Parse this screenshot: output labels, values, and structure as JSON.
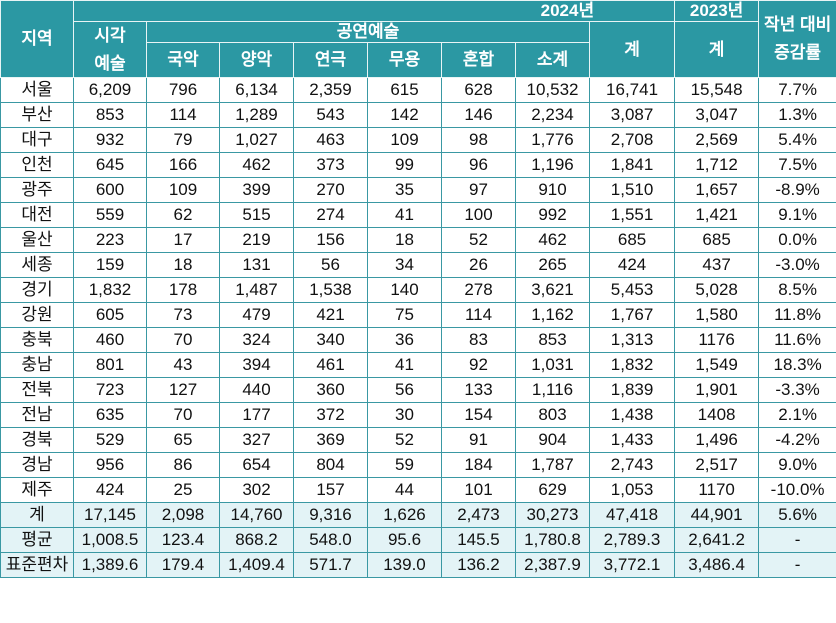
{
  "header": {
    "region": "지역",
    "year2024": "2024년",
    "year2023": "2023년",
    "visual_arts_line1": "시각",
    "visual_arts_line2": "예술",
    "performing_arts": "공연예술",
    "gukak": "국악",
    "yangak": "양악",
    "theater": "연극",
    "dance": "무용",
    "mixed": "혼합",
    "subtotal": "소계",
    "total2024": "계",
    "total2023": "계",
    "change_line1": "작년 대비",
    "change_line2": "증감률"
  },
  "rows": [
    {
      "region": "서울",
      "visual": "6,209",
      "gukak": "796",
      "yangak": "6,134",
      "theater": "2,359",
      "dance": "615",
      "mixed": "628",
      "subtotal": "10,532",
      "total2024": "16,741",
      "total2023": "15,548",
      "change": "7.7%"
    },
    {
      "region": "부산",
      "visual": "853",
      "gukak": "114",
      "yangak": "1,289",
      "theater": "543",
      "dance": "142",
      "mixed": "146",
      "subtotal": "2,234",
      "total2024": "3,087",
      "total2023": "3,047",
      "change": "1.3%"
    },
    {
      "region": "대구",
      "visual": "932",
      "gukak": "79",
      "yangak": "1,027",
      "theater": "463",
      "dance": "109",
      "mixed": "98",
      "subtotal": "1,776",
      "total2024": "2,708",
      "total2023": "2,569",
      "change": "5.4%"
    },
    {
      "region": "인천",
      "visual": "645",
      "gukak": "166",
      "yangak": "462",
      "theater": "373",
      "dance": "99",
      "mixed": "96",
      "subtotal": "1,196",
      "total2024": "1,841",
      "total2023": "1,712",
      "change": "7.5%"
    },
    {
      "region": "광주",
      "visual": "600",
      "gukak": "109",
      "yangak": "399",
      "theater": "270",
      "dance": "35",
      "mixed": "97",
      "subtotal": "910",
      "total2024": "1,510",
      "total2023": "1,657",
      "change": "-8.9%"
    },
    {
      "region": "대전",
      "visual": "559",
      "gukak": "62",
      "yangak": "515",
      "theater": "274",
      "dance": "41",
      "mixed": "100",
      "subtotal": "992",
      "total2024": "1,551",
      "total2023": "1,421",
      "change": "9.1%"
    },
    {
      "region": "울산",
      "visual": "223",
      "gukak": "17",
      "yangak": "219",
      "theater": "156",
      "dance": "18",
      "mixed": "52",
      "subtotal": "462",
      "total2024": "685",
      "total2023": "685",
      "change": "0.0%"
    },
    {
      "region": "세종",
      "visual": "159",
      "gukak": "18",
      "yangak": "131",
      "theater": "56",
      "dance": "34",
      "mixed": "26",
      "subtotal": "265",
      "total2024": "424",
      "total2023": "437",
      "change": "-3.0%"
    },
    {
      "region": "경기",
      "visual": "1,832",
      "gukak": "178",
      "yangak": "1,487",
      "theater": "1,538",
      "dance": "140",
      "mixed": "278",
      "subtotal": "3,621",
      "total2024": "5,453",
      "total2023": "5,028",
      "change": "8.5%"
    },
    {
      "region": "강원",
      "visual": "605",
      "gukak": "73",
      "yangak": "479",
      "theater": "421",
      "dance": "75",
      "mixed": "114",
      "subtotal": "1,162",
      "total2024": "1,767",
      "total2023": "1,580",
      "change": "11.8%"
    },
    {
      "region": "충북",
      "visual": "460",
      "gukak": "70",
      "yangak": "324",
      "theater": "340",
      "dance": "36",
      "mixed": "83",
      "subtotal": "853",
      "total2024": "1,313",
      "total2023": "1176",
      "change": "11.6%"
    },
    {
      "region": "충남",
      "visual": "801",
      "gukak": "43",
      "yangak": "394",
      "theater": "461",
      "dance": "41",
      "mixed": "92",
      "subtotal": "1,031",
      "total2024": "1,832",
      "total2023": "1,549",
      "change": "18.3%"
    },
    {
      "region": "전북",
      "visual": "723",
      "gukak": "127",
      "yangak": "440",
      "theater": "360",
      "dance": "56",
      "mixed": "133",
      "subtotal": "1,116",
      "total2024": "1,839",
      "total2023": "1,901",
      "change": "-3.3%"
    },
    {
      "region": "전남",
      "visual": "635",
      "gukak": "70",
      "yangak": "177",
      "theater": "372",
      "dance": "30",
      "mixed": "154",
      "subtotal": "803",
      "total2024": "1,438",
      "total2023": "1408",
      "change": "2.1%"
    },
    {
      "region": "경북",
      "visual": "529",
      "gukak": "65",
      "yangak": "327",
      "theater": "369",
      "dance": "52",
      "mixed": "91",
      "subtotal": "904",
      "total2024": "1,433",
      "total2023": "1,496",
      "change": "-4.2%"
    },
    {
      "region": "경남",
      "visual": "956",
      "gukak": "86",
      "yangak": "654",
      "theater": "804",
      "dance": "59",
      "mixed": "184",
      "subtotal": "1,787",
      "total2024": "2,743",
      "total2023": "2,517",
      "change": "9.0%"
    },
    {
      "region": "제주",
      "visual": "424",
      "gukak": "25",
      "yangak": "302",
      "theater": "157",
      "dance": "44",
      "mixed": "101",
      "subtotal": "629",
      "total2024": "1,053",
      "total2023": "1170",
      "change": "-10.0%"
    }
  ],
  "summary": [
    {
      "region": "계",
      "visual": "17,145",
      "gukak": "2,098",
      "yangak": "14,760",
      "theater": "9,316",
      "dance": "1,626",
      "mixed": "2,473",
      "subtotal": "30,273",
      "total2024": "47,418",
      "total2023": "44,901",
      "change": "5.6%"
    },
    {
      "region": "평균",
      "visual": "1,008.5",
      "gukak": "123.4",
      "yangak": "868.2",
      "theater": "548.0",
      "dance": "95.6",
      "mixed": "145.5",
      "subtotal": "1,780.8",
      "total2024": "2,789.3",
      "total2023": "2,641.2",
      "change": "-"
    },
    {
      "region": "표준편차",
      "visual": "1,389.6",
      "gukak": "179.4",
      "yangak": "1,409.4",
      "theater": "571.7",
      "dance": "139.0",
      "mixed": "136.2",
      "subtotal": "2,387.9",
      "total2024": "3,772.1",
      "total2023": "3,486.4",
      "change": "-"
    }
  ],
  "colors": {
    "header_bg": "#2b98a3",
    "header_text": "#ffffff",
    "grid_line": "#3a98a3",
    "summary_bg": "#e3f3f6"
  }
}
